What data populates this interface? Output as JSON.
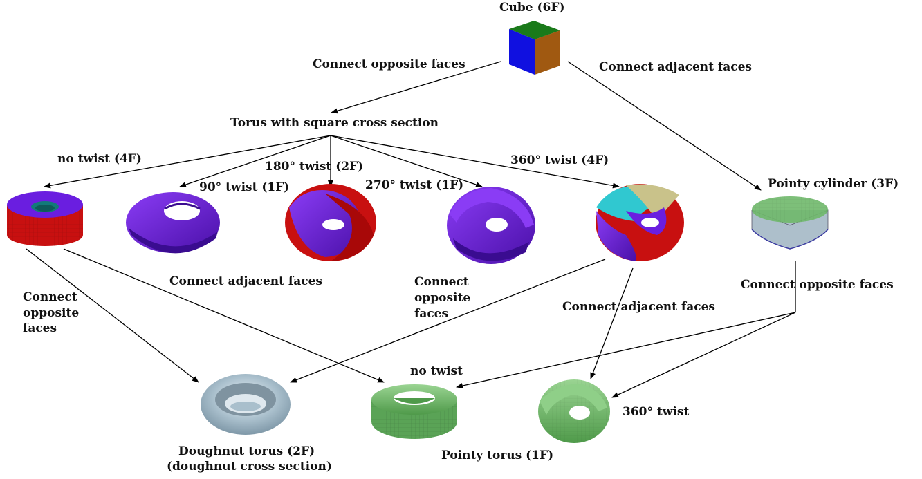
{
  "nodes": {
    "cube": "Cube (6F)",
    "torus_square": "Torus with square cross section",
    "pointy_cylinder": "Pointy cylinder (3F)",
    "doughnut_torus_line1": "Doughnut torus (2F)",
    "doughnut_torus_line2": "(doughnut cross section)",
    "pointy_torus": "Pointy torus (1F)"
  },
  "edges": {
    "cube_to_torus": "Connect opposite faces",
    "cube_to_cylinder": "Connect adjacent faces",
    "no_twist_4f": "no twist (4F)",
    "twist_90": "90° twist (1F)",
    "twist_180": "180° twist (2F)",
    "twist_270": "270° twist (1F)",
    "twist_360": "360° twist (4F)",
    "left_opposite_1": "Connect",
    "left_opposite_2": "opposite",
    "left_opposite_3": "faces",
    "notwist_adjacent": "Connect adjacent faces",
    "mid_opposite_1": "Connect",
    "mid_opposite_2": "opposite",
    "mid_opposite_3": "faces",
    "twist360_adjacent": "Connect adjacent faces",
    "cylinder_opposite": "Connect opposite faces",
    "no_twist": "no twist",
    "twist_360_short": "360° twist"
  },
  "colors": {
    "purple": "#6a1ee0",
    "red": "#c81010",
    "green": "#6fb86a",
    "grey_blue": "#9fb4c2",
    "cube_blue": "#1010e0",
    "cube_green": "#1a7a1a",
    "cube_brown": "#8a5a10"
  }
}
